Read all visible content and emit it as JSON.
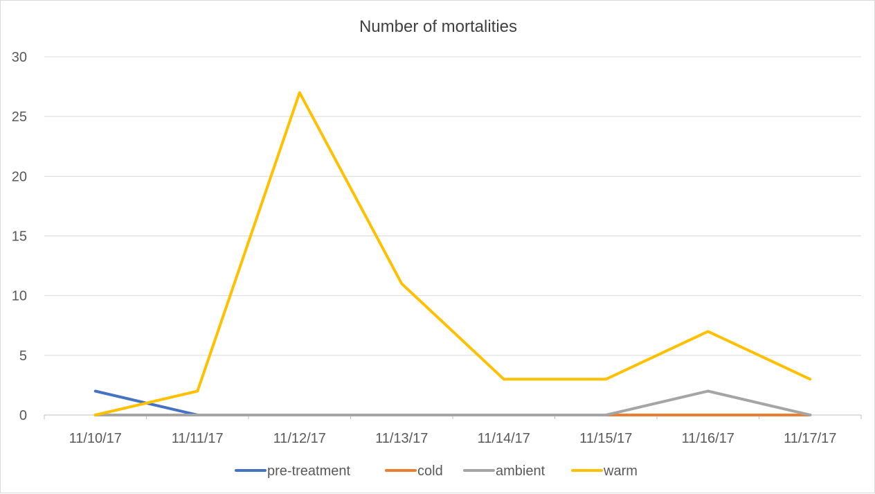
{
  "chart_data": {
    "type": "line",
    "title": "Number of mortalities",
    "xlabel": "",
    "ylabel": "",
    "categories": [
      "11/10/17",
      "11/11/17",
      "11/12/17",
      "11/13/17",
      "11/14/17",
      "11/15/17",
      "11/16/17",
      "11/17/17"
    ],
    "ylim": [
      0,
      30
    ],
    "yticks": [
      "0",
      "5",
      "10",
      "15",
      "20",
      "25",
      "30"
    ],
    "grid": true,
    "legend_position": "bottom",
    "series": [
      {
        "name": "pre-treatment",
        "color": "#4472C4",
        "values": [
          2,
          0,
          null,
          null,
          null,
          null,
          null,
          null
        ]
      },
      {
        "name": "cold",
        "color": "#ED7D31",
        "values": [
          null,
          null,
          null,
          null,
          null,
          0,
          0,
          0
        ]
      },
      {
        "name": "ambient",
        "color": "#A5A5A5",
        "values": [
          0,
          0,
          0,
          0,
          0,
          0,
          2,
          0
        ]
      },
      {
        "name": "warm",
        "color": "#FFC000",
        "values": [
          0,
          2,
          27,
          11,
          3,
          3,
          7,
          3
        ]
      }
    ]
  }
}
